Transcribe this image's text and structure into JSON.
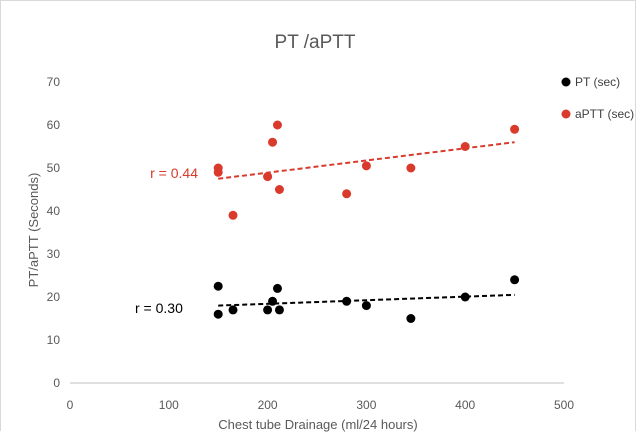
{
  "chart_data": {
    "type": "scatter",
    "title": "PT /aPTT",
    "xlabel": "Chest tube Drainage (ml/24 hours)",
    "ylabel": "PT/aPTT (Seconds)",
    "xlim": [
      0,
      500
    ],
    "ylim": [
      0,
      70
    ],
    "x_ticks": [
      0,
      100,
      200,
      300,
      400,
      500
    ],
    "y_ticks": [
      0,
      10,
      20,
      30,
      40,
      50,
      60,
      70
    ],
    "grid": false,
    "legend_position": "top-right",
    "series": [
      {
        "name": "PT (sec)",
        "color": "#000000",
        "points": [
          {
            "x": 150,
            "y": 22.5
          },
          {
            "x": 150,
            "y": 16
          },
          {
            "x": 165,
            "y": 17
          },
          {
            "x": 200,
            "y": 17
          },
          {
            "x": 205,
            "y": 19
          },
          {
            "x": 210,
            "y": 22
          },
          {
            "x": 212,
            "y": 17
          },
          {
            "x": 280,
            "y": 19
          },
          {
            "x": 300,
            "y": 18
          },
          {
            "x": 345,
            "y": 15
          },
          {
            "x": 400,
            "y": 20
          },
          {
            "x": 450,
            "y": 24
          }
        ],
        "trendline": {
          "x": [
            150,
            450
          ],
          "y": [
            18,
            20.5
          ]
        },
        "annotation": "r = 0.30"
      },
      {
        "name": "aPTT (sec)",
        "color": "#d93a2b",
        "points": [
          {
            "x": 150,
            "y": 50
          },
          {
            "x": 150,
            "y": 49
          },
          {
            "x": 165,
            "y": 39
          },
          {
            "x": 200,
            "y": 48
          },
          {
            "x": 205,
            "y": 56
          },
          {
            "x": 210,
            "y": 60
          },
          {
            "x": 212,
            "y": 45
          },
          {
            "x": 280,
            "y": 44
          },
          {
            "x": 300,
            "y": 50.5
          },
          {
            "x": 345,
            "y": 50
          },
          {
            "x": 400,
            "y": 55
          },
          {
            "x": 450,
            "y": 59
          }
        ],
        "trendline": {
          "x": [
            150,
            450
          ],
          "y": [
            47.5,
            56
          ]
        },
        "annotation": "r = 0.44"
      }
    ]
  }
}
